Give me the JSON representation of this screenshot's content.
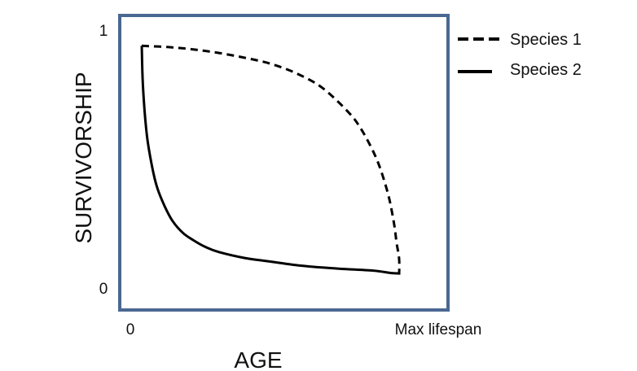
{
  "chart_data": {
    "type": "line",
    "xlabel": "AGE",
    "ylabel": "SURVIVORSHIP",
    "x_ticks": [
      "0",
      "Max lifespan"
    ],
    "y_ticks": [
      "1",
      "0"
    ],
    "xlim": [
      0,
      1
    ],
    "ylim": [
      0,
      1
    ],
    "grid": false,
    "legend_position": "outside-top-right",
    "frame_color": "#4a6891",
    "series": [
      {
        "name": "Species 1",
        "style": "dashed",
        "color": "#000000",
        "x": [
          0.0,
          0.1,
          0.2,
          0.3,
          0.4,
          0.5,
          0.6,
          0.7,
          0.8,
          0.85,
          0.9,
          0.93,
          0.96,
          0.98,
          0.99,
          1.0,
          1.0
        ],
        "y": [
          0.975,
          0.97,
          0.96,
          0.945,
          0.925,
          0.9,
          0.86,
          0.8,
          0.7,
          0.63,
          0.53,
          0.45,
          0.34,
          0.23,
          0.15,
          0.08,
          0.015
        ]
      },
      {
        "name": "Species 2",
        "style": "solid",
        "color": "#000000",
        "x": [
          0.0,
          0.005,
          0.02,
          0.04,
          0.06,
          0.09,
          0.12,
          0.16,
          0.2,
          0.25,
          0.3,
          0.4,
          0.5,
          0.6,
          0.7,
          0.8,
          0.9,
          0.97,
          1.0
        ],
        "y": [
          0.975,
          0.8,
          0.6,
          0.47,
          0.38,
          0.3,
          0.24,
          0.19,
          0.16,
          0.13,
          0.11,
          0.085,
          0.07,
          0.055,
          0.045,
          0.038,
          0.032,
          0.022,
          0.02
        ]
      }
    ]
  }
}
